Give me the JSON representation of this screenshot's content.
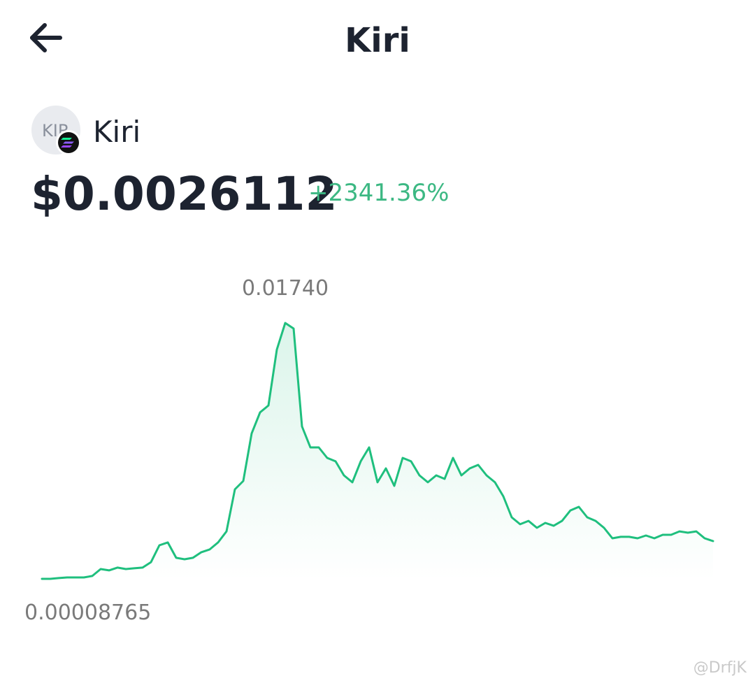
{
  "header": {
    "title": "Kiri"
  },
  "token": {
    "icon_text": "KIR",
    "name": "Kiri",
    "price": "$0.0026112",
    "change": "+2341.36%"
  },
  "watermark": "@DrfjK",
  "chart_data": {
    "type": "line",
    "color": "#1fbf7e",
    "ylim": [
      8.765e-05,
      0.0174
    ],
    "annotations": [
      {
        "value": 0.0174,
        "label": "0.01740"
      },
      {
        "value": 8.765e-05,
        "label": "0.00008765"
      }
    ],
    "values": [
      8.765e-05,
      8.765e-05,
      0.00014,
      0.00018,
      0.00018,
      0.00018,
      0.00028,
      0.00075,
      0.00066,
      0.00085,
      0.00075,
      0.0008,
      0.00085,
      0.00122,
      0.00236,
      0.00255,
      0.00151,
      0.00141,
      0.00151,
      0.00189,
      0.00208,
      0.00255,
      0.0033,
      0.00614,
      0.00671,
      0.00993,
      0.01135,
      0.01182,
      0.0156,
      0.0174,
      0.01702,
      0.0104,
      0.00898,
      0.00898,
      0.00827,
      0.00804,
      0.00709,
      0.00662,
      0.00804,
      0.00898,
      0.00662,
      0.00756,
      0.00638,
      0.00827,
      0.00804,
      0.00709,
      0.00662,
      0.00709,
      0.00685,
      0.00827,
      0.00709,
      0.00756,
      0.0078,
      0.00709,
      0.00662,
      0.00567,
      0.00425,
      0.00378,
      0.00401,
      0.00354,
      0.00387,
      0.00368,
      0.00401,
      0.00472,
      0.00496,
      0.00425,
      0.00401,
      0.00354,
      0.00283,
      0.00293,
      0.00293,
      0.00283,
      0.00302,
      0.00283,
      0.00307,
      0.00307,
      0.0033,
      0.00321,
      0.0033,
      0.00283,
      0.00264
    ]
  }
}
